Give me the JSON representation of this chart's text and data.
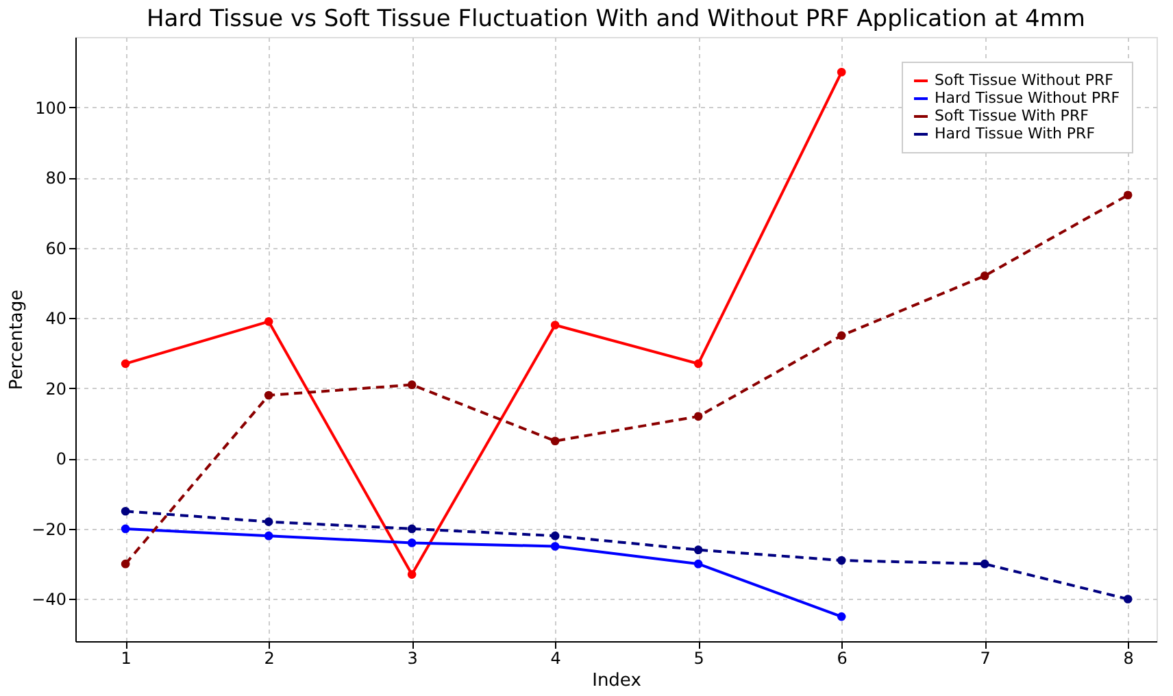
{
  "chart_data": {
    "type": "line",
    "title": "Hard Tissue vs Soft Tissue Fluctuation With and Without PRF Application at 4mm",
    "xlabel": "Index",
    "ylabel": "Percentage",
    "xlim": [
      0.65,
      8.2
    ],
    "xticks": [
      1,
      2,
      3,
      4,
      5,
      6,
      7,
      8
    ],
    "ylim": [
      -52,
      120
    ],
    "yticks": [
      -40,
      -20,
      0,
      20,
      40,
      60,
      80,
      100
    ],
    "grid": true,
    "legend": "top right",
    "marker": "circle",
    "series": [
      {
        "name": "Soft Tissue Without PRF",
        "color": "#ff0000",
        "line_style": "solid",
        "x": [
          1,
          2,
          3,
          4,
          5,
          6
        ],
        "values": [
          27,
          39,
          -33,
          38,
          27,
          110
        ]
      },
      {
        "name": "Hard Tissue Without PRF",
        "color": "#0000ff",
        "line_style": "solid",
        "x": [
          1,
          2,
          3,
          4,
          5,
          6
        ],
        "values": [
          -20,
          -22,
          -24,
          -25,
          -30,
          -45
        ]
      },
      {
        "name": "Soft Tissue With PRF",
        "color": "#8b0000",
        "line_style": "dashed",
        "x": [
          1,
          2,
          3,
          4,
          5,
          6,
          7,
          8
        ],
        "values": [
          -30,
          18,
          21,
          5,
          12,
          35,
          52,
          75
        ]
      },
      {
        "name": "Hard Tissue With PRF",
        "color": "#000080",
        "line_style": "dashed",
        "x": [
          1,
          2,
          3,
          4,
          5,
          6,
          7,
          8
        ],
        "values": [
          -15,
          -18,
          -20,
          -22,
          -26,
          -29,
          -30,
          -40
        ]
      }
    ]
  }
}
